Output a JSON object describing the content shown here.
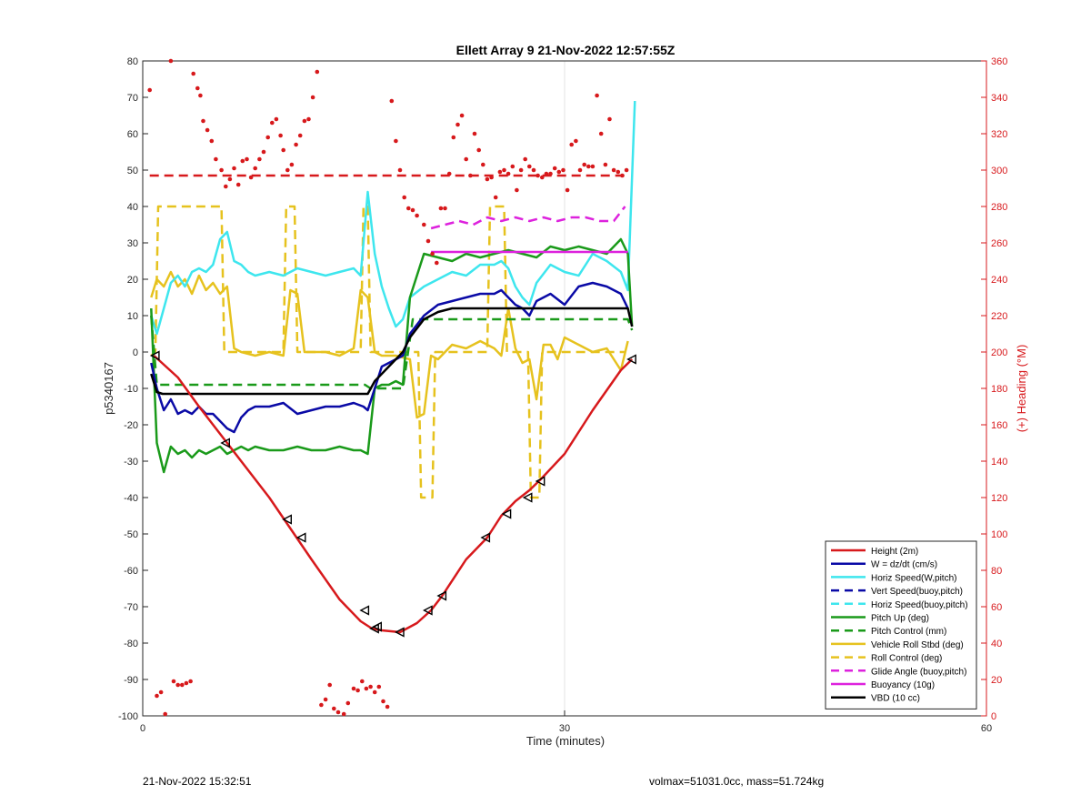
{
  "chart_data": {
    "type": "line",
    "title": "Ellett Array 9 21-Nov-2022 12:57:55Z",
    "xlabel": "Time (minutes)",
    "ylabel_left": "p5340167",
    "ylabel_right": "(+) Heading (°M)",
    "xlim": [
      0,
      60
    ],
    "ylim_left": [
      -100,
      80
    ],
    "ylim_right": [
      0,
      360
    ],
    "xticks": [
      0,
      30,
      60
    ],
    "yticks_left": [
      -100,
      -90,
      -80,
      -70,
      -60,
      -50,
      -40,
      -30,
      -20,
      -10,
      0,
      10,
      20,
      30,
      40,
      50,
      60,
      70,
      80
    ],
    "yticks_right": [
      0,
      20,
      40,
      60,
      80,
      100,
      120,
      140,
      160,
      180,
      200,
      220,
      240,
      260,
      280,
      300,
      320,
      340,
      360
    ],
    "grid": "x-only",
    "legend_position": "lower-right",
    "colors": {
      "red": "#d7191c",
      "blue": "#0a0aa6",
      "cyan": "#3ee6ee",
      "green": "#1a9a1a",
      "yellow": "#e6c21e",
      "magenta": "#dd22dd",
      "black": "#000000",
      "right_axis": "#d7191c"
    },
    "series": [
      {
        "name": "Height (2m)",
        "color": "#d7191c",
        "style": "solid",
        "axis": "left",
        "x": [
          0.8,
          2.5,
          4.0,
          6.0,
          9.0,
          12.0,
          14.0,
          15.5,
          16.3,
          17.0,
          18.3,
          19.5,
          20.5,
          21.3,
          23.0,
          24.5,
          25.5,
          26.5,
          27.5,
          28.3,
          30.0,
          32.0,
          34.0,
          34.8
        ],
        "y": [
          -1,
          -7,
          -15,
          -25,
          -40,
          -57,
          -68,
          -74,
          -76,
          -76.5,
          -77,
          -74.5,
          -71,
          -67,
          -57,
          -51,
          -45,
          -41,
          -38,
          -35,
          -28,
          -16,
          -5,
          -2
        ]
      },
      {
        "name": "Marker points",
        "role": "triangle-markers",
        "color": "#000000",
        "axis": "left",
        "x": [
          0.9,
          5.9,
          10.3,
          11.3,
          15.8,
          16.5,
          16.7,
          18.3,
          20.3,
          21.3,
          24.4,
          25.9,
          27.4,
          28.3,
          34.8
        ],
        "y": [
          -1,
          -25,
          -46,
          -51,
          -71,
          -76,
          -75.5,
          -77,
          -71,
          -67,
          -51,
          -44.5,
          -40,
          -35.5,
          -2
        ]
      },
      {
        "name": "W = dz/dt (cm/s)",
        "color": "#0a0aa6",
        "style": "solid",
        "axis": "left",
        "x": [
          0.6,
          1.0,
          1.5,
          2.0,
          2.5,
          3.0,
          3.5,
          4.0,
          4.5,
          5.0,
          5.5,
          6.0,
          6.5,
          7.0,
          7.5,
          8.0,
          9.0,
          10.0,
          11.0,
          12.0,
          13.0,
          14.0,
          15.0,
          15.7,
          16.0,
          16.5,
          17.0,
          17.5,
          18.0,
          18.5,
          19.0,
          20.0,
          21.0,
          22.0,
          23.0,
          24.0,
          25.0,
          25.5,
          26.0,
          26.5,
          27.0,
          27.5,
          28.0,
          29.0,
          30.0,
          31.0,
          32.0,
          33.0,
          34.0,
          34.5
        ],
        "y": [
          -3,
          -10,
          -16,
          -13,
          -17,
          -16,
          -17,
          -15,
          -17,
          -17,
          -19,
          -21,
          -22,
          -18,
          -16,
          -15,
          -15,
          -14,
          -17,
          -16,
          -15,
          -15,
          -14,
          -15,
          -16,
          -10,
          -4,
          -3,
          -2,
          -1,
          5,
          10,
          13,
          14,
          15,
          16,
          16,
          17,
          15,
          13,
          12,
          10,
          14,
          16,
          13,
          18,
          19,
          18,
          16,
          12
        ]
      },
      {
        "name": "Horiz Speed(W,pitch)",
        "color": "#3ee6ee",
        "style": "solid",
        "axis": "left",
        "x": [
          0.6,
          1.0,
          1.5,
          2.0,
          2.5,
          3.0,
          3.5,
          4.0,
          4.5,
          5.0,
          5.5,
          6.0,
          6.5,
          7.0,
          7.5,
          8.0,
          9.0,
          10.0,
          11.0,
          12.0,
          13.0,
          14.0,
          15.0,
          15.5,
          16.0,
          16.5,
          17.0,
          17.5,
          18.0,
          18.5,
          19.0,
          20.0,
          21.0,
          22.0,
          23.0,
          24.0,
          25.0,
          25.5,
          26.0,
          26.5,
          27.0,
          27.5,
          28.0,
          29.0,
          30.0,
          31.0,
          32.0,
          33.0,
          34.0,
          34.5,
          35.0
        ],
        "y": [
          10,
          5,
          12,
          19,
          21,
          18,
          22,
          23,
          22,
          24,
          31,
          33,
          25,
          24,
          22,
          21,
          22,
          21,
          23,
          22,
          21,
          22,
          23,
          21,
          44,
          27,
          18,
          12,
          7,
          9,
          15,
          18,
          20,
          22,
          21,
          24,
          24,
          25,
          23,
          18,
          15,
          13,
          19,
          24,
          22,
          21,
          27,
          25,
          22,
          17,
          69
        ]
      },
      {
        "name": "Vert Speed(buoy,pitch)",
        "color": "#0a0aa6",
        "style": "dashed",
        "axis": "left",
        "x": [],
        "y": []
      },
      {
        "name": "Horiz Speed(buoy,pitch)",
        "color": "#3ee6ee",
        "style": "dashed",
        "axis": "left",
        "x": [],
        "y": []
      },
      {
        "name": "Pitch Up (deg)",
        "color": "#1a9a1a",
        "style": "solid",
        "axis": "left",
        "x": [
          0.6,
          1.0,
          1.5,
          2.0,
          2.5,
          3.0,
          3.5,
          4.0,
          4.5,
          5.0,
          5.5,
          6.0,
          6.5,
          7.0,
          7.5,
          8.0,
          9.0,
          10.0,
          11.0,
          12.0,
          13.0,
          14.0,
          15.0,
          15.5,
          16.0,
          16.5,
          17.0,
          17.5,
          18.0,
          18.5,
          19.0,
          20.0,
          21.0,
          22.0,
          23.0,
          24.0,
          25.0,
          26.0,
          27.0,
          28.0,
          29.0,
          30.0,
          31.0,
          32.0,
          33.0,
          34.0,
          34.5,
          34.8
        ],
        "y": [
          12,
          -25,
          -33,
          -26,
          -28,
          -27,
          -29,
          -27,
          -28,
          -27,
          -26,
          -28,
          -27,
          -26,
          -27,
          -26,
          -27,
          -27,
          -26,
          -27,
          -27,
          -26,
          -27,
          -27,
          -28,
          -10,
          -9,
          -9,
          -8,
          -9,
          15,
          27,
          26,
          25,
          27,
          26,
          27,
          28,
          27,
          26,
          29,
          28,
          29,
          28,
          27,
          31,
          27,
          7
        ]
      },
      {
        "name": "Pitch Control (mm)",
        "color": "#1a9a1a",
        "style": "dashed",
        "axis": "left",
        "x": [
          0.6,
          1.0,
          15.8,
          16.2,
          18.5,
          19.2,
          34.5,
          34.8
        ],
        "y": [
          10,
          -9,
          -9,
          -10,
          -10,
          9,
          9,
          6
        ]
      },
      {
        "name": "Vehicle Roll Stbd (deg)",
        "color": "#e6c21e",
        "style": "solid",
        "axis": "left",
        "x": [
          0.6,
          1.0,
          1.5,
          2.0,
          2.5,
          3.0,
          3.5,
          4.0,
          4.5,
          5.0,
          5.5,
          6.0,
          6.5,
          7.0,
          8.0,
          9.0,
          10.0,
          10.5,
          11.0,
          11.5,
          12.0,
          13.0,
          14.0,
          15.0,
          15.5,
          16.0,
          16.5,
          17.0,
          18.0,
          19.0,
          19.5,
          20.0,
          20.5,
          21.0,
          21.5,
          22.0,
          23.0,
          24.0,
          25.0,
          25.5,
          26.0,
          26.5,
          27.0,
          27.5,
          28.0,
          28.5,
          29.0,
          29.5,
          30.0,
          31.0,
          32.0,
          33.0,
          34.0,
          34.5
        ],
        "y": [
          15,
          20,
          18,
          22,
          18,
          20,
          16,
          21,
          17,
          19,
          16,
          18,
          1,
          0,
          -1,
          0,
          -1,
          17,
          16,
          0,
          0,
          0,
          -1,
          1,
          17,
          15,
          0,
          -1,
          -1,
          -2,
          -18,
          -17,
          -1,
          -2,
          0,
          2,
          1,
          3,
          1,
          -1,
          12,
          1,
          -3,
          -2,
          -13,
          2,
          2,
          -2,
          4,
          2,
          0,
          1,
          -5,
          3
        ]
      },
      {
        "name": "Roll Control (deg)",
        "color": "#e6c21e",
        "style": "dashed",
        "axis": "left",
        "x": [
          0.6,
          0.9,
          1.1,
          5.6,
          5.8,
          10.0,
          10.2,
          10.8,
          11.0,
          15.5,
          15.7,
          16.0,
          16.2,
          19.6,
          19.8,
          20.6,
          20.8,
          24.5,
          24.7,
          25.7,
          25.9,
          27.4,
          27.6,
          28.2,
          28.4,
          34.0,
          34.3
        ],
        "y": [
          -1,
          0,
          40,
          40,
          0,
          0,
          40,
          40,
          0,
          0,
          40,
          40,
          0,
          0,
          -40,
          -40,
          0,
          0,
          40,
          40,
          0,
          0,
          -40,
          -40,
          0,
          0,
          0
        ]
      },
      {
        "name": "Glide Angle (buoy,pitch)",
        "color": "#dd22dd",
        "style": "dashed",
        "axis": "left",
        "x": [
          20.5,
          21.5,
          22.5,
          23.5,
          24.5,
          25.5,
          26.5,
          27.5,
          28.5,
          29.5,
          30.5,
          31.5,
          32.5,
          33.5,
          34.3
        ],
        "y": [
          34,
          35,
          36,
          35,
          37,
          36,
          37,
          36,
          37,
          36,
          37,
          37,
          36,
          36,
          40
        ]
      },
      {
        "name": "Buoyancy (10g)",
        "color": "#dd22dd",
        "style": "solid",
        "axis": "left",
        "x": [
          20.5,
          34.5
        ],
        "y": [
          27.5,
          27.5
        ]
      },
      {
        "name": "VBD (10 cc)",
        "color": "#000000",
        "style": "solid",
        "axis": "left",
        "x": [
          0.6,
          1.0,
          1.4,
          15.5,
          16.0,
          16.5,
          18.5,
          19.0,
          20.0,
          21.0,
          22.0,
          34.5,
          34.8
        ],
        "y": [
          -6,
          -11,
          -11.5,
          -11.5,
          -11.5,
          -8,
          0,
          4,
          9,
          11,
          12,
          12,
          7
        ]
      },
      {
        "name": "Heading",
        "role": "heading-dots",
        "color": "#d7191c",
        "axis": "right",
        "x": [
          0.5,
          1.0,
          1.3,
          1.6,
          2.0,
          2.2,
          2.5,
          2.8,
          3.1,
          3.4,
          3.6,
          3.9,
          4.1,
          4.3,
          4.6,
          4.9,
          5.2,
          5.6,
          5.9,
          6.2,
          6.5,
          6.8,
          7.1,
          7.4,
          7.7,
          8.0,
          8.3,
          8.6,
          8.9,
          9.2,
          9.5,
          9.8,
          10.0,
          10.3,
          10.6,
          10.9,
          11.2,
          11.5,
          11.8,
          12.1,
          12.4,
          12.7,
          13.0,
          13.3,
          13.6,
          13.9,
          14.3,
          14.6,
          15.0,
          15.3,
          15.6,
          15.9,
          16.2,
          16.5,
          16.8,
          17.1,
          17.4,
          17.7,
          18.0,
          18.3,
          18.6,
          18.9,
          19.2,
          19.5,
          20.0,
          20.3,
          20.6,
          20.9,
          21.2,
          21.5,
          21.8,
          22.1,
          22.4,
          22.7,
          23.0,
          23.3,
          23.6,
          23.9,
          24.2,
          24.5,
          24.8,
          25.1,
          25.4,
          25.7,
          26.0,
          26.3,
          26.6,
          26.9,
          27.2,
          27.5,
          27.8,
          28.1,
          28.4,
          28.7,
          29.0,
          29.3,
          29.6,
          29.9,
          30.2,
          30.5,
          30.8,
          31.1,
          31.4,
          31.7,
          32.0,
          32.3,
          32.6,
          32.9,
          33.2,
          33.5,
          33.8,
          34.1,
          34.4
        ],
        "y": [
          344,
          11,
          13,
          1,
          360,
          19,
          17,
          17,
          18,
          19,
          353,
          345,
          341,
          327,
          322,
          316,
          306,
          300,
          291,
          295,
          301,
          292,
          305,
          306,
          296,
          301,
          306,
          310,
          318,
          326,
          328,
          319,
          311,
          300,
          303,
          314,
          319,
          327,
          328,
          340,
          354,
          6,
          9,
          17,
          4,
          2,
          1,
          7,
          15,
          14,
          19,
          15,
          16,
          13,
          16,
          8,
          5,
          338,
          316,
          300,
          285,
          279,
          278,
          275,
          270,
          261,
          254,
          249,
          279,
          279,
          298,
          318,
          325,
          330,
          306,
          297,
          320,
          311,
          303,
          295,
          296,
          285,
          299,
          300,
          298,
          302,
          289,
          300,
          306,
          302,
          300,
          297,
          296,
          298,
          298,
          301,
          299,
          300,
          289,
          314,
          316,
          300,
          303,
          302,
          302,
          341,
          320,
          303,
          328,
          300,
          299,
          297,
          300
        ]
      },
      {
        "name": "Heading mean",
        "role": "heading-mean",
        "color": "#d7191c",
        "style": "dashed",
        "axis": "right",
        "x": [
          0.5,
          34.5
        ],
        "y": [
          297,
          297
        ]
      }
    ]
  },
  "footer": {
    "timestamp": "21-Nov-2022 15:32:51",
    "summary": "volmax=51031.0cc, mass=51.724kg"
  }
}
